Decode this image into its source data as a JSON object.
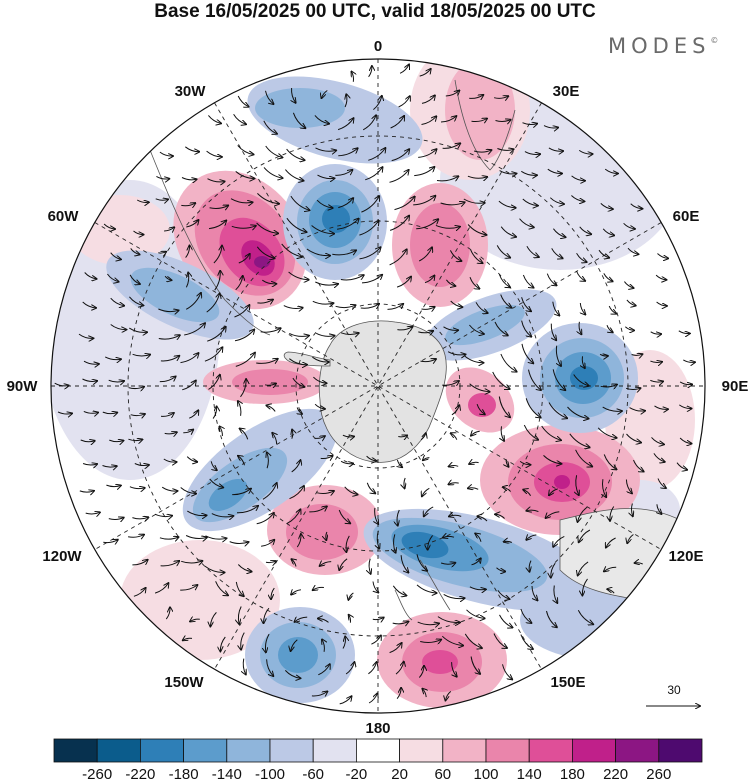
{
  "title": "Base 16/05/2025 00 UTC, valid 18/05/2025 00 UTC",
  "brand": "MODES",
  "brand_mark": "©",
  "map": {
    "projection": "south-polar-stereographic",
    "longitude_labels": [
      {
        "text": "0"
      },
      {
        "text": "30E"
      },
      {
        "text": "60E"
      },
      {
        "text": "90E"
      },
      {
        "text": "120E"
      },
      {
        "text": "150E"
      },
      {
        "text": "180"
      },
      {
        "text": "150W"
      },
      {
        "text": "120W"
      },
      {
        "text": "90W"
      },
      {
        "text": "60W"
      },
      {
        "text": "30W"
      }
    ],
    "vector_reference": {
      "value": "30"
    }
  },
  "colorbar": {
    "tick_labels": [
      "-260",
      "-220",
      "-180",
      "-140",
      "-100",
      "-60",
      "-20",
      "20",
      "60",
      "100",
      "140",
      "180",
      "220",
      "260"
    ],
    "colors": [
      "#07314f",
      "#0b5c8c",
      "#2e7fb7",
      "#5c9ccc",
      "#8fb5db",
      "#bcc9e6",
      "#e2e2f0",
      "#ffffff",
      "#f6dde3",
      "#f2b3c6",
      "#ea85ab",
      "#df4f98",
      "#c0208a",
      "#8c1683",
      "#4e0a6f"
    ]
  }
}
